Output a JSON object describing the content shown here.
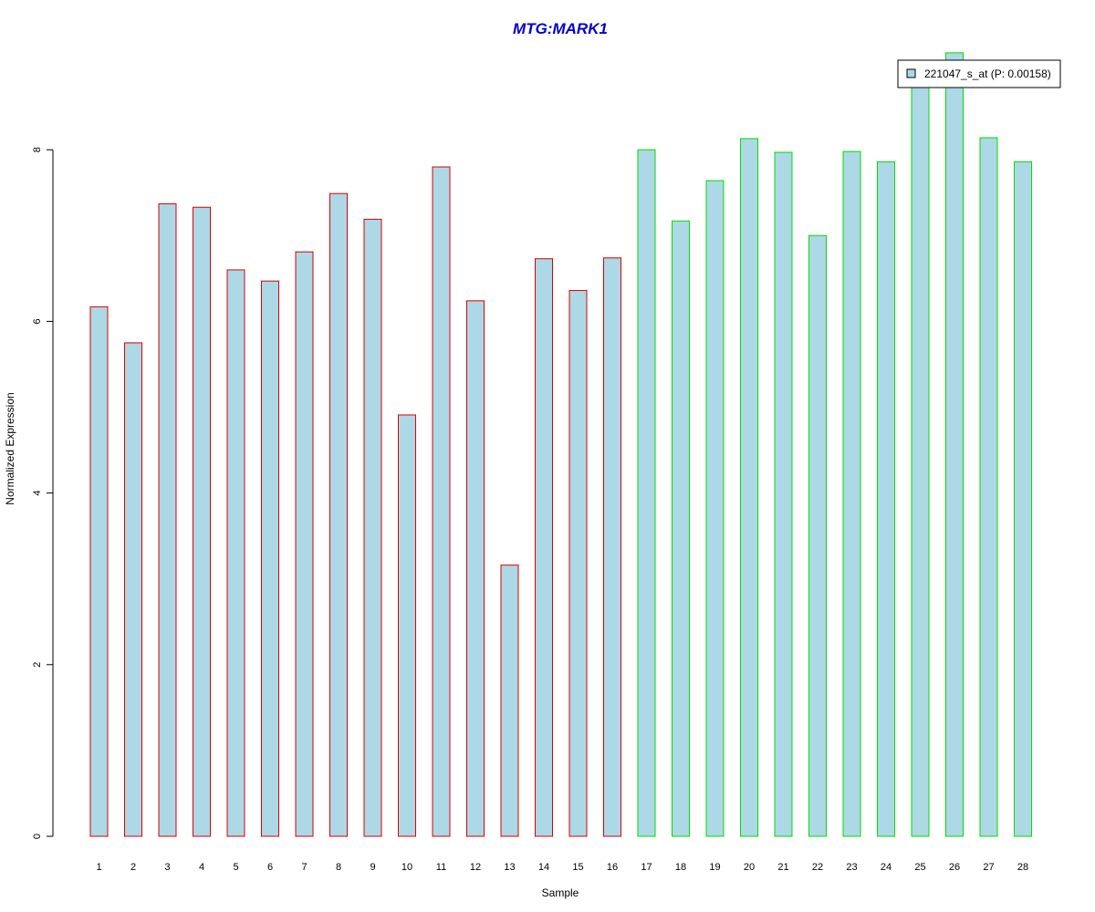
{
  "chart_data": {
    "type": "bar",
    "title": "MTG:MARK1",
    "xlabel": "Sample",
    "ylabel": "Normalized Expression",
    "categories": [
      "1",
      "2",
      "3",
      "4",
      "5",
      "6",
      "7",
      "8",
      "9",
      "10",
      "11",
      "12",
      "13",
      "14",
      "15",
      "16",
      "17",
      "18",
      "19",
      "20",
      "21",
      "22",
      "23",
      "24",
      "25",
      "26",
      "27",
      "28"
    ],
    "series": [
      {
        "name": "221047_s_at (P: 0.00158)",
        "values": [
          6.17,
          5.75,
          7.37,
          7.33,
          6.6,
          6.47,
          6.81,
          7.49,
          7.19,
          4.91,
          7.8,
          6.24,
          3.16,
          6.73,
          6.36,
          6.74,
          8.0,
          7.17,
          7.64,
          8.13,
          7.97,
          7.0,
          7.98,
          7.86,
          8.83,
          9.13,
          8.14,
          7.86
        ]
      }
    ],
    "groups": [
      {
        "range": [
          1,
          16
        ],
        "border_color": "#dd0000"
      },
      {
        "range": [
          17,
          28
        ],
        "border_color": "#00dd00"
      }
    ],
    "yticks": [
      0,
      2,
      4,
      6,
      8
    ],
    "ylim": [
      0,
      9.2
    ],
    "grid": false,
    "legend_position": "top-right",
    "colors": {
      "title": "#0000cc",
      "bar_fill": "#add8e6",
      "legend_swatch": "#add8e6"
    }
  }
}
